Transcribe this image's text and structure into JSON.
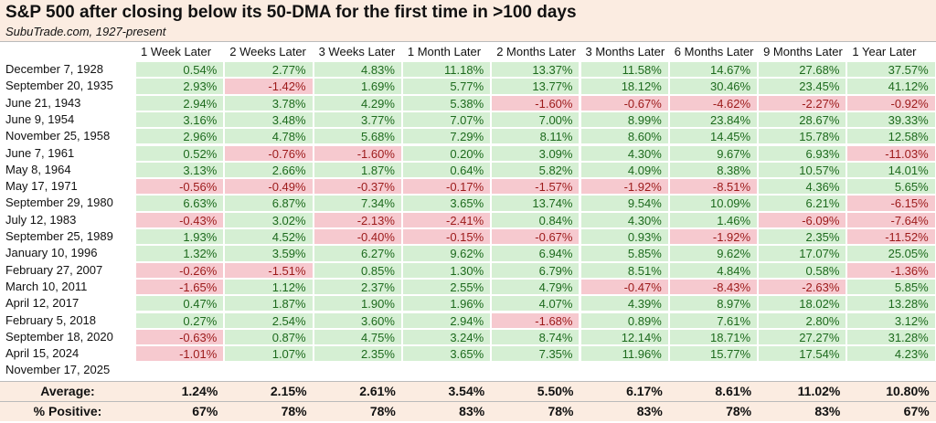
{
  "header": {
    "title": "S&P 500 after closing below its 50-DMA for the first time in >100 days",
    "subtitle": "SubuTrade.com, 1927-present"
  },
  "table": {
    "columns": [
      "1 Week Later",
      "2 Weeks Later",
      "3 Weeks Later",
      "1 Month Later",
      "2 Months Later",
      "3 Months Later",
      "6 Months Later",
      "9 Months Later",
      "1 Year Later"
    ],
    "rows": [
      {
        "label": "December 7, 1928",
        "values": [
          "0.54%",
          "2.77%",
          "4.83%",
          "11.18%",
          "13.37%",
          "11.58%",
          "14.67%",
          "27.68%",
          "37.57%"
        ]
      },
      {
        "label": "September 20, 1935",
        "values": [
          "2.93%",
          "-1.42%",
          "1.69%",
          "5.77%",
          "13.77%",
          "18.12%",
          "30.46%",
          "23.45%",
          "41.12%"
        ]
      },
      {
        "label": "June 21, 1943",
        "values": [
          "2.94%",
          "3.78%",
          "4.29%",
          "5.38%",
          "-1.60%",
          "-0.67%",
          "-4.62%",
          "-2.27%",
          "-0.92%"
        ]
      },
      {
        "label": "June 9, 1954",
        "values": [
          "3.16%",
          "3.48%",
          "3.77%",
          "7.07%",
          "7.00%",
          "8.99%",
          "23.84%",
          "28.67%",
          "39.33%"
        ]
      },
      {
        "label": "November 25, 1958",
        "values": [
          "2.96%",
          "4.78%",
          "5.68%",
          "7.29%",
          "8.11%",
          "8.60%",
          "14.45%",
          "15.78%",
          "12.58%"
        ]
      },
      {
        "label": "June 7, 1961",
        "values": [
          "0.52%",
          "-0.76%",
          "-1.60%",
          "0.20%",
          "3.09%",
          "4.30%",
          "9.67%",
          "6.93%",
          "-11.03%"
        ]
      },
      {
        "label": "May 8, 1964",
        "values": [
          "3.13%",
          "2.66%",
          "1.87%",
          "0.64%",
          "5.82%",
          "4.09%",
          "8.38%",
          "10.57%",
          "14.01%"
        ]
      },
      {
        "label": "May 17, 1971",
        "values": [
          "-0.56%",
          "-0.49%",
          "-0.37%",
          "-0.17%",
          "-1.57%",
          "-1.92%",
          "-8.51%",
          "4.36%",
          "5.65%"
        ]
      },
      {
        "label": "September 29, 1980",
        "values": [
          "6.63%",
          "6.87%",
          "7.34%",
          "3.65%",
          "13.74%",
          "9.54%",
          "10.09%",
          "6.21%",
          "-6.15%"
        ]
      },
      {
        "label": "July 12, 1983",
        "values": [
          "-0.43%",
          "3.02%",
          "-2.13%",
          "-2.41%",
          "0.84%",
          "4.30%",
          "1.46%",
          "-6.09%",
          "-7.64%"
        ]
      },
      {
        "label": "September 25, 1989",
        "values": [
          "1.93%",
          "4.52%",
          "-0.40%",
          "-0.15%",
          "-0.67%",
          "0.93%",
          "-1.92%",
          "2.35%",
          "-11.52%"
        ]
      },
      {
        "label": "January 10, 1996",
        "values": [
          "1.32%",
          "3.59%",
          "6.27%",
          "9.62%",
          "6.94%",
          "5.85%",
          "9.62%",
          "17.07%",
          "25.05%"
        ]
      },
      {
        "label": "February 27, 2007",
        "values": [
          "-0.26%",
          "-1.51%",
          "0.85%",
          "1.30%",
          "6.79%",
          "8.51%",
          "4.84%",
          "0.58%",
          "-1.36%"
        ]
      },
      {
        "label": "March 10, 2011",
        "values": [
          "-1.65%",
          "1.12%",
          "2.37%",
          "2.55%",
          "4.79%",
          "-0.47%",
          "-8.43%",
          "-2.63%",
          "5.85%"
        ]
      },
      {
        "label": "April 12, 2017",
        "values": [
          "0.47%",
          "1.87%",
          "1.90%",
          "1.96%",
          "4.07%",
          "4.39%",
          "8.97%",
          "18.02%",
          "13.28%"
        ]
      },
      {
        "label": "February 5, 2018",
        "values": [
          "0.27%",
          "2.54%",
          "3.60%",
          "2.94%",
          "-1.68%",
          "0.89%",
          "7.61%",
          "2.80%",
          "3.12%"
        ]
      },
      {
        "label": "September 18, 2020",
        "values": [
          "-0.63%",
          "0.87%",
          "4.75%",
          "3.24%",
          "8.74%",
          "12.14%",
          "18.71%",
          "27.27%",
          "31.28%"
        ]
      },
      {
        "label": "April 15, 2024",
        "values": [
          "-1.01%",
          "1.07%",
          "2.35%",
          "3.65%",
          "7.35%",
          "11.96%",
          "15.77%",
          "17.54%",
          "4.23%"
        ]
      },
      {
        "label": "November 17, 2025",
        "values": []
      }
    ],
    "summary": [
      {
        "label": "Average:",
        "values": [
          "1.24%",
          "2.15%",
          "2.61%",
          "3.54%",
          "5.50%",
          "6.17%",
          "8.61%",
          "11.02%",
          "10.80%"
        ]
      },
      {
        "label": "% Positive:",
        "values": [
          "67%",
          "78%",
          "78%",
          "83%",
          "78%",
          "83%",
          "78%",
          "83%",
          "67%"
        ]
      }
    ]
  }
}
